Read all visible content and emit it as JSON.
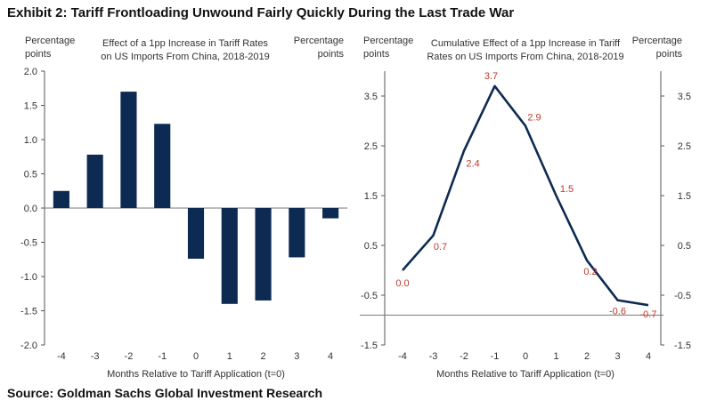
{
  "exhibit_title": "Exhibit 2: Tariff Frontloading Unwound Fairly Quickly During the Last Trade War",
  "source": "Source: Goldman Sachs Global Investment Research",
  "chart_data": [
    {
      "type": "bar",
      "title_lines": [
        "Effect of a 1pp Increase  in Tariff Rates",
        "on US Imports From China, 2018-2019"
      ],
      "ylabel_left_lines": [
        "Percentage",
        "points"
      ],
      "ylabel_right_lines": [
        "Percentage",
        "points"
      ],
      "xlabel": "Months Relative to Tariff Application (t=0)",
      "categories": [
        "-4",
        "-3",
        "-2",
        "-1",
        "0",
        "1",
        "2",
        "3",
        "4"
      ],
      "values": [
        0.25,
        0.78,
        1.7,
        1.23,
        -0.74,
        -1.4,
        -1.35,
        -0.72,
        -0.15
      ],
      "ylim": [
        -2.0,
        2.0
      ],
      "yticks": [
        "2.0",
        "1.5",
        "1.0",
        "0.5",
        "0.0",
        "-0.5",
        "-1.0",
        "-1.5",
        "-2.0"
      ],
      "ytick_values": [
        2.0,
        1.5,
        1.0,
        0.5,
        0.0,
        -0.5,
        -1.0,
        -1.5,
        -2.0
      ],
      "color": "#0d2b52",
      "grid": false
    },
    {
      "type": "line",
      "title_lines": [
        "Cumulative Effect of a 1pp Increase  in Tariff",
        "Rates on US Imports From China, 2018-2019"
      ],
      "ylabel_left_lines": [
        "Percentage",
        "points"
      ],
      "ylabel_right_lines": [
        "Percentage",
        "points"
      ],
      "xlabel": "Months Relative to Tariff Application (t=0)",
      "x": [
        -4,
        -3,
        -2,
        -1,
        0,
        1,
        2,
        3,
        4
      ],
      "xticks": [
        "-4",
        "-3",
        "-2",
        "-1",
        "0",
        "1",
        "2",
        "3",
        "4"
      ],
      "values": [
        0.0,
        0.7,
        2.4,
        3.7,
        2.9,
        1.5,
        0.2,
        -0.6,
        -0.7
      ],
      "data_labels": [
        "0.0",
        "0.7",
        "2.4",
        "3.7",
        "2.9",
        "1.5",
        "0.2",
        "-0.6",
        "-0.7"
      ],
      "ylim": [
        -1.5,
        4.0
      ],
      "yticks": [
        "3.5",
        "2.5",
        "1.5",
        "0.5",
        "-0.5",
        "-1.5"
      ],
      "ytick_values": [
        3.5,
        2.5,
        1.5,
        0.5,
        -0.5,
        -1.5
      ],
      "color": "#0d2b52",
      "label_color": "#c0392b",
      "grid": false
    }
  ]
}
